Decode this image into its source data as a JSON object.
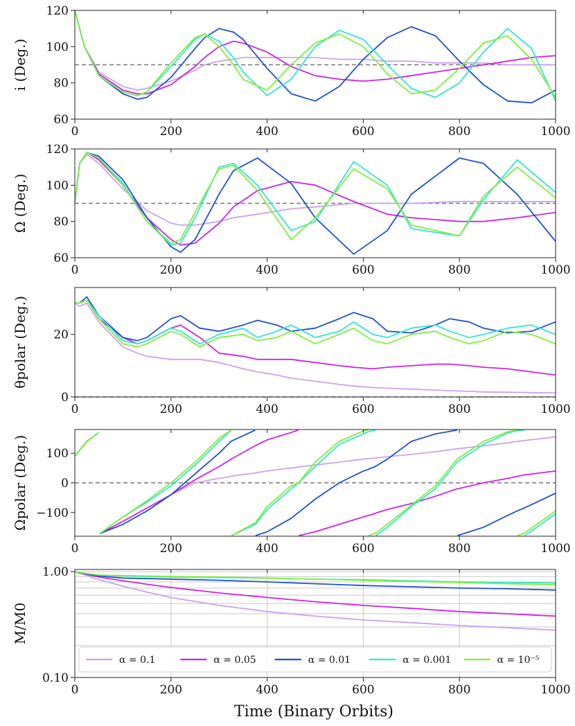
{
  "figure": {
    "xlabel": "Time (Binary Orbits)",
    "xlim": [
      0,
      1000
    ],
    "xticks": [
      0,
      200,
      400,
      600,
      800,
      1000
    ]
  },
  "legend": {
    "entries": [
      {
        "label": "α = 0.1",
        "color": "#c8a2f0"
      },
      {
        "label": "α = 0.05",
        "color": "#cc22e6"
      },
      {
        "label": "α = 0.01",
        "color": "#1f4fd6"
      },
      {
        "label": "α = 0.001",
        "color": "#2ee6d2"
      },
      {
        "label": "α = 10⁻⁵",
        "color": "#7cf03a"
      }
    ]
  },
  "chart_data": [
    {
      "type": "line",
      "id": "inclination",
      "ylabel": "i (Deg.)",
      "ylim": [
        60,
        120
      ],
      "yticks": [
        60,
        80,
        100,
        120
      ],
      "ytick_labels": [
        "60",
        "80",
        "100",
        "120"
      ],
      "reference_line": 90,
      "x": [
        0,
        20,
        50,
        100,
        130,
        150,
        200,
        250,
        270,
        300,
        330,
        350,
        400,
        450,
        500,
        550,
        600,
        650,
        700,
        750,
        800,
        850,
        900,
        950,
        1000
      ],
      "series": [
        {
          "name": "α = 0.1",
          "values": [
            120,
            100,
            86,
            78,
            76,
            77,
            81,
            87,
            90,
            92,
            93,
            94,
            94,
            94,
            94,
            93,
            93,
            92,
            92,
            91,
            91,
            91,
            90,
            90,
            90
          ]
        },
        {
          "name": "α = 0.05",
          "values": [
            120,
            100,
            85,
            76,
            74,
            74,
            79,
            89,
            94,
            100,
            103,
            102,
            97,
            89,
            84,
            82,
            81,
            82,
            84,
            86,
            88,
            90,
            92,
            94,
            95
          ]
        },
        {
          "name": "α = 0.01",
          "values": [
            120,
            100,
            84,
            74,
            71,
            72,
            83,
            99,
            105,
            110,
            108,
            104,
            88,
            74,
            70,
            78,
            93,
            105,
            111,
            106,
            92,
            79,
            70,
            69,
            76
          ]
        },
        {
          "name": "α = 0.001",
          "values": [
            120,
            100,
            84,
            75,
            73,
            75,
            89,
            104,
            107,
            103,
            94,
            86,
            73,
            82,
            100,
            109,
            104,
            90,
            77,
            72,
            80,
            97,
            110,
            99,
            70
          ]
        },
        {
          "name": "α = 10⁻⁵",
          "values": [
            120,
            100,
            84,
            75,
            73,
            75,
            91,
            105,
            107,
            100,
            90,
            82,
            76,
            90,
            102,
            107,
            100,
            85,
            74,
            76,
            88,
            102,
            106,
            93,
            72
          ]
        }
      ]
    },
    {
      "type": "line",
      "id": "longitude",
      "ylabel": "Ω (Deg.)",
      "ylim": [
        60,
        120
      ],
      "yticks": [
        60,
        80,
        100,
        120
      ],
      "ytick_labels": [
        "60",
        "80",
        "100",
        "120"
      ],
      "reference_line": 90,
      "x": [
        0,
        10,
        25,
        50,
        100,
        150,
        200,
        220,
        250,
        300,
        330,
        380,
        450,
        500,
        580,
        650,
        700,
        800,
        850,
        920,
        1000
      ],
      "series": [
        {
          "name": "α = 0.1",
          "values": [
            90,
            112,
            117,
            112,
            98,
            86,
            79,
            78,
            78,
            80,
            82,
            84,
            87,
            88,
            90,
            90,
            90,
            91,
            91,
            91,
            91
          ]
        },
        {
          "name": "α = 0.05",
          "values": [
            90,
            112,
            118,
            114,
            100,
            82,
            70,
            67,
            68,
            79,
            88,
            97,
            102,
            100,
            91,
            84,
            82,
            80,
            80,
            82,
            85
          ]
        },
        {
          "name": "α = 0.01",
          "values": [
            90,
            112,
            118,
            116,
            103,
            82,
            66,
            63,
            70,
            95,
            108,
            115,
            101,
            82,
            62,
            75,
            95,
            115,
            112,
            95,
            69
          ]
        },
        {
          "name": "α = 0.001",
          "values": [
            90,
            112,
            118,
            115,
            101,
            80,
            67,
            68,
            82,
            110,
            112,
            100,
            75,
            80,
            113,
            100,
            76,
            72,
            92,
            114,
            96
          ]
        },
        {
          "name": "α = 10⁻⁵",
          "values": [
            90,
            112,
            118,
            115,
            100,
            80,
            68,
            70,
            85,
            109,
            111,
            97,
            70,
            82,
            109,
            98,
            78,
            72,
            94,
            110,
            93
          ]
        }
      ]
    },
    {
      "type": "line",
      "id": "theta-polar",
      "ylabel": "θpolar (Deg.)",
      "ylim": [
        0,
        35
      ],
      "yticks": [
        0,
        20
      ],
      "ytick_labels": [
        "0",
        "20"
      ],
      "reference_line": 0,
      "x": [
        0,
        10,
        25,
        50,
        100,
        130,
        150,
        200,
        220,
        260,
        300,
        350,
        380,
        420,
        450,
        500,
        550,
        580,
        620,
        650,
        700,
        750,
        780,
        820,
        850,
        900,
        950,
        1000
      ],
      "series": [
        {
          "name": "α = 0.1",
          "values": [
            30,
            29,
            30,
            24,
            16,
            14,
            13,
            12,
            12,
            12,
            11,
            9,
            8,
            7,
            6,
            5,
            4,
            3.5,
            3,
            2.8,
            2.5,
            2.2,
            2,
            1.8,
            1.6,
            1.5,
            1.4,
            1.3
          ]
        },
        {
          "name": "α = 0.05",
          "values": [
            30,
            30,
            31,
            25,
            19,
            17,
            18,
            22,
            23,
            19,
            14,
            13,
            12,
            12,
            12,
            11,
            10,
            9.5,
            9,
            9.5,
            10,
            10.5,
            10.5,
            10,
            9.5,
            9,
            8,
            7
          ]
        },
        {
          "name": "α = 0.01",
          "values": [
            30,
            30,
            32,
            26,
            19,
            18,
            19,
            25,
            26,
            22,
            21,
            23,
            24.5,
            23,
            21,
            22,
            25,
            27,
            25,
            21,
            20.5,
            23,
            25,
            24,
            22,
            20.5,
            21,
            24
          ]
        },
        {
          "name": "α = 0.001",
          "values": [
            30,
            30,
            31,
            26,
            18,
            17,
            18,
            22,
            21,
            17,
            20,
            22,
            19,
            21,
            23,
            19,
            21,
            24,
            20,
            19,
            22,
            23,
            21,
            19,
            20,
            22,
            23,
            20
          ]
        },
        {
          "name": "α = 10⁻⁵",
          "values": [
            30,
            30,
            31,
            25,
            17,
            16,
            17,
            21,
            20,
            16,
            19,
            20,
            18,
            19,
            21,
            17,
            20,
            22,
            18,
            17,
            20,
            21,
            19,
            17,
            18,
            21,
            20,
            17
          ]
        }
      ]
    },
    {
      "type": "line",
      "id": "omega-polar",
      "ylabel": "Ωpolar (Deg.)",
      "ylim": [
        -180,
        180
      ],
      "yticks": [
        -100,
        0,
        100
      ],
      "ytick_labels": [
        "−100",
        "0",
        "100"
      ],
      "reference_line": 0,
      "wrap": [
        -180,
        180
      ],
      "x": [
        0,
        25,
        50,
        51,
        100,
        150,
        200,
        250,
        300,
        325,
        326,
        375,
        376,
        400,
        450,
        465,
        466,
        500,
        550,
        600,
        610,
        611,
        625,
        626,
        650,
        700,
        750,
        795,
        796,
        850,
        900,
        920,
        921,
        935,
        936,
        1000
      ],
      "series": [
        {
          "name": "α = 0.1",
          "values": [
            90,
            140,
            170,
            -172,
            -140,
            -95,
            -40,
            0,
            15,
            22,
            23,
            33,
            34,
            40,
            50,
            53,
            54,
            60,
            70,
            80,
            82,
            82,
            84,
            84,
            88,
            96,
            105,
            115,
            115,
            125,
            135,
            140,
            140,
            143,
            143,
            155
          ]
        },
        {
          "name": "α = 0.05",
          "values": [
            90,
            140,
            170,
            -172,
            -130,
            -85,
            -40,
            10,
            55,
            80,
            81,
            125,
            126,
            145,
            170,
            178,
            -178,
            -165,
            -140,
            -115,
            -110,
            -110,
            -103,
            -102,
            -90,
            -70,
            -45,
            -20,
            -20,
            0,
            15,
            22,
            22,
            27,
            27,
            40
          ]
        },
        {
          "name": "α = 0.01",
          "values": [
            90,
            140,
            170,
            -172,
            -140,
            -95,
            -40,
            30,
            100,
            140,
            141,
            178,
            -178,
            -165,
            -120,
            -100,
            -99,
            -55,
            0,
            40,
            45,
            46,
            55,
            56,
            80,
            140,
            165,
            178,
            -178,
            -150,
            -110,
            -95,
            -94,
            -85,
            -84,
            -35
          ]
        },
        {
          "name": "α = 0.001",
          "values": [
            90,
            140,
            170,
            -172,
            -115,
            -65,
            -10,
            60,
            140,
            178,
            -178,
            -140,
            -139,
            -90,
            -20,
            0,
            1,
            55,
            130,
            165,
            172,
            173,
            178,
            -178,
            -150,
            -80,
            -20,
            70,
            71,
            130,
            168,
            176,
            177,
            178,
            -178,
            -105
          ]
        },
        {
          "name": "α = 10⁻⁵",
          "values": [
            90,
            140,
            170,
            -172,
            -115,
            -60,
            0,
            70,
            150,
            178,
            -178,
            -135,
            -134,
            -80,
            -10,
            0,
            1,
            70,
            140,
            175,
            178,
            -178,
            -170,
            -169,
            -140,
            -75,
            -10,
            80,
            81,
            140,
            172,
            178,
            -178,
            -170,
            -169,
            -95
          ]
        }
      ]
    },
    {
      "type": "line",
      "id": "mass",
      "ylabel": "M/M0",
      "yscale": "log",
      "ylim": [
        0.1,
        1.05
      ],
      "yticks": [
        0.1,
        1.0
      ],
      "ytick_labels": [
        "0.10",
        "1.00"
      ],
      "grid": true,
      "x": [
        0,
        25,
        50,
        100,
        150,
        200,
        300,
        400,
        500,
        600,
        700,
        800,
        900,
        1000
      ],
      "series": [
        {
          "name": "α = 0.1",
          "values": [
            1.0,
            0.92,
            0.84,
            0.73,
            0.64,
            0.57,
            0.48,
            0.42,
            0.38,
            0.35,
            0.33,
            0.31,
            0.295,
            0.28
          ]
        },
        {
          "name": "α = 0.05",
          "values": [
            1.0,
            0.94,
            0.89,
            0.82,
            0.76,
            0.71,
            0.63,
            0.57,
            0.52,
            0.48,
            0.45,
            0.42,
            0.4,
            0.38
          ]
        },
        {
          "name": "α = 0.01",
          "values": [
            1.0,
            0.95,
            0.91,
            0.87,
            0.86,
            0.85,
            0.83,
            0.8,
            0.77,
            0.74,
            0.72,
            0.7,
            0.69,
            0.67
          ]
        },
        {
          "name": "α = 0.001",
          "values": [
            1.0,
            0.96,
            0.93,
            0.91,
            0.9,
            0.89,
            0.88,
            0.87,
            0.85,
            0.84,
            0.82,
            0.8,
            0.79,
            0.78
          ]
        },
        {
          "name": "α = 10⁻⁵",
          "values": [
            1.0,
            0.96,
            0.93,
            0.92,
            0.91,
            0.9,
            0.89,
            0.87,
            0.85,
            0.83,
            0.81,
            0.79,
            0.77,
            0.75
          ]
        }
      ]
    }
  ]
}
